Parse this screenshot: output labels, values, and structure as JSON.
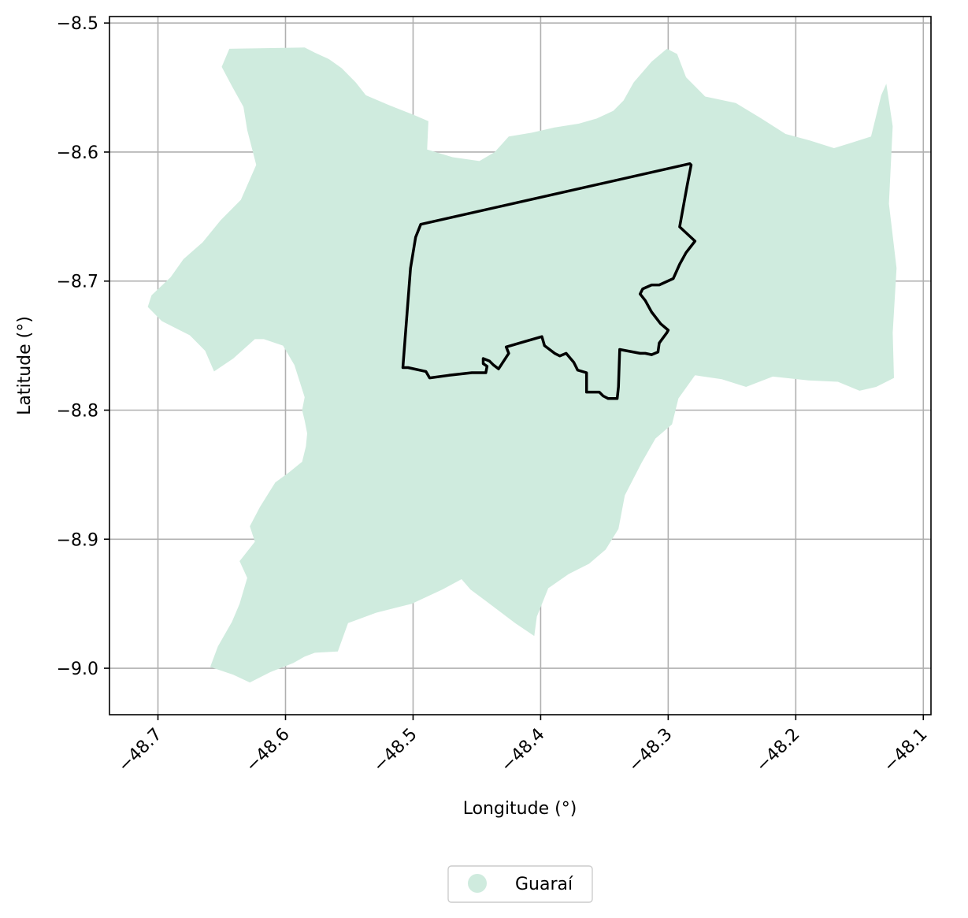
{
  "chart_data": {
    "type": "map",
    "xlabel": "Longitude (°)",
    "ylabel": "Latitude (°)",
    "xlim": [
      -48.738,
      -48.094
    ],
    "ylim": [
      -9.036,
      -8.495
    ],
    "grid": true,
    "x_ticks": [
      -48.7,
      -48.6,
      -48.5,
      -48.4,
      -48.3,
      -48.2,
      -48.1
    ],
    "y_ticks": [
      -8.5,
      -8.6,
      -8.7,
      -8.8,
      -8.9,
      -9.0
    ],
    "x_tick_labels": [
      "−48.7",
      "−48.6",
      "−48.5",
      "−48.4",
      "−48.3",
      "−48.2",
      "−48.1"
    ],
    "y_tick_labels": [
      "−8.5",
      "−8.6",
      "−8.7",
      "−8.8",
      "−8.9",
      "−9.0"
    ],
    "legend_position": "bottom-center",
    "legend": [
      {
        "label": "Guaraí",
        "color": "#cfebde"
      }
    ],
    "region": {
      "name": "Guaraí",
      "fill": "#cfebde",
      "coords": [
        [
          -48.644,
          -8.52
        ],
        [
          -48.585,
          -8.519
        ],
        [
          -48.577,
          -8.523
        ],
        [
          -48.566,
          -8.528
        ],
        [
          -48.556,
          -8.535
        ],
        [
          -48.545,
          -8.546
        ],
        [
          -48.537,
          -8.556
        ],
        [
          -48.518,
          -8.564
        ],
        [
          -48.5,
          -8.571
        ],
        [
          -48.488,
          -8.576
        ],
        [
          -48.489,
          -8.598
        ],
        [
          -48.469,
          -8.604
        ],
        [
          -48.448,
          -8.607
        ],
        [
          -48.436,
          -8.6
        ],
        [
          -48.425,
          -8.588
        ],
        [
          -48.407,
          -8.585
        ],
        [
          -48.389,
          -8.581
        ],
        [
          -48.37,
          -8.578
        ],
        [
          -48.356,
          -8.574
        ],
        [
          -48.343,
          -8.568
        ],
        [
          -48.335,
          -8.56
        ],
        [
          -48.327,
          -8.546
        ],
        [
          -48.313,
          -8.53
        ],
        [
          -48.301,
          -8.52
        ],
        [
          -48.293,
          -8.524
        ],
        [
          -48.286,
          -8.542
        ],
        [
          -48.271,
          -8.557
        ],
        [
          -48.247,
          -8.562
        ],
        [
          -48.227,
          -8.574
        ],
        [
          -48.208,
          -8.586
        ],
        [
          -48.189,
          -8.591
        ],
        [
          -48.17,
          -8.597
        ],
        [
          -48.157,
          -8.593
        ],
        [
          -48.141,
          -8.588
        ],
        [
          -48.133,
          -8.556
        ],
        [
          -48.129,
          -8.547
        ],
        [
          -48.124,
          -8.58
        ],
        [
          -48.127,
          -8.64
        ],
        [
          -48.121,
          -8.69
        ],
        [
          -48.124,
          -8.74
        ],
        [
          -48.123,
          -8.775
        ],
        [
          -48.137,
          -8.782
        ],
        [
          -48.15,
          -8.785
        ],
        [
          -48.167,
          -8.778
        ],
        [
          -48.19,
          -8.777
        ],
        [
          -48.218,
          -8.774
        ],
        [
          -48.239,
          -8.782
        ],
        [
          -48.258,
          -8.776
        ],
        [
          -48.279,
          -8.773
        ],
        [
          -48.292,
          -8.791
        ],
        [
          -48.297,
          -8.811
        ],
        [
          -48.31,
          -8.822
        ],
        [
          -48.321,
          -8.841
        ],
        [
          -48.334,
          -8.866
        ],
        [
          -48.339,
          -8.892
        ],
        [
          -48.349,
          -8.908
        ],
        [
          -48.362,
          -8.919
        ],
        [
          -48.378,
          -8.927
        ],
        [
          -48.394,
          -8.938
        ],
        [
          -48.403,
          -8.96
        ],
        [
          -48.405,
          -8.975
        ],
        [
          -48.42,
          -8.965
        ],
        [
          -48.44,
          -8.95
        ],
        [
          -48.455,
          -8.939
        ],
        [
          -48.462,
          -8.931
        ],
        [
          -48.477,
          -8.939
        ],
        [
          -48.501,
          -8.95
        ],
        [
          -48.529,
          -8.957
        ],
        [
          -48.551,
          -8.965
        ],
        [
          -48.559,
          -8.987
        ],
        [
          -48.577,
          -8.988
        ],
        [
          -48.585,
          -8.991
        ],
        [
          -48.594,
          -8.996
        ],
        [
          -48.612,
          -9.003
        ],
        [
          -48.628,
          -9.011
        ],
        [
          -48.641,
          -9.005
        ],
        [
          -48.659,
          -8.999
        ],
        [
          -48.653,
          -8.983
        ],
        [
          -48.642,
          -8.964
        ],
        [
          -48.636,
          -8.95
        ],
        [
          -48.63,
          -8.93
        ],
        [
          -48.636,
          -8.917
        ],
        [
          -48.624,
          -8.902
        ],
        [
          -48.628,
          -8.89
        ],
        [
          -48.62,
          -8.875
        ],
        [
          -48.608,
          -8.856
        ],
        [
          -48.597,
          -8.848
        ],
        [
          -48.587,
          -8.84
        ],
        [
          -48.584,
          -8.828
        ],
        [
          -48.583,
          -8.818
        ],
        [
          -48.585,
          -8.808
        ],
        [
          -48.587,
          -8.8
        ],
        [
          -48.585,
          -8.79
        ],
        [
          -48.593,
          -8.765
        ],
        [
          -48.602,
          -8.75
        ],
        [
          -48.617,
          -8.745
        ],
        [
          -48.624,
          -8.745
        ],
        [
          -48.641,
          -8.76
        ],
        [
          -48.656,
          -8.77
        ],
        [
          -48.663,
          -8.754
        ],
        [
          -48.675,
          -8.742
        ],
        [
          -48.697,
          -8.731
        ],
        [
          -48.708,
          -8.72
        ],
        [
          -48.705,
          -8.711
        ],
        [
          -48.69,
          -8.697
        ],
        [
          -48.68,
          -8.683
        ],
        [
          -48.665,
          -8.67
        ],
        [
          -48.651,
          -8.653
        ],
        [
          -48.635,
          -8.637
        ],
        [
          -48.623,
          -8.61
        ],
        [
          -48.63,
          -8.583
        ],
        [
          -48.633,
          -8.565
        ],
        [
          -48.642,
          -8.549
        ],
        [
          -48.65,
          -8.534
        ]
      ]
    },
    "boundary": {
      "stroke": "#000000",
      "coords": [
        [
          -48.283,
          -8.609
        ],
        [
          -48.494,
          -8.656
        ],
        [
          -48.498,
          -8.666
        ],
        [
          -48.502,
          -8.69
        ],
        [
          -48.508,
          -8.767
        ],
        [
          -48.504,
          -8.767
        ],
        [
          -48.49,
          -8.77
        ],
        [
          -48.487,
          -8.775
        ],
        [
          -48.472,
          -8.773
        ],
        [
          -48.454,
          -8.771
        ],
        [
          -48.443,
          -8.771
        ],
        [
          -48.442,
          -8.766
        ],
        [
          -48.445,
          -8.764
        ],
        [
          -48.445,
          -8.76
        ],
        [
          -48.44,
          -8.762
        ],
        [
          -48.437,
          -8.765
        ],
        [
          -48.433,
          -8.768
        ],
        [
          -48.425,
          -8.756
        ],
        [
          -48.427,
          -8.751
        ],
        [
          -48.413,
          -8.747
        ],
        [
          -48.399,
          -8.743
        ],
        [
          -48.397,
          -8.75
        ],
        [
          -48.389,
          -8.756
        ],
        [
          -48.385,
          -8.758
        ],
        [
          -48.38,
          -8.756
        ],
        [
          -48.374,
          -8.763
        ],
        [
          -48.371,
          -8.769
        ],
        [
          -48.364,
          -8.771
        ],
        [
          -48.364,
          -8.786
        ],
        [
          -48.359,
          -8.786
        ],
        [
          -48.354,
          -8.786
        ],
        [
          -48.351,
          -8.789
        ],
        [
          -48.347,
          -8.791
        ],
        [
          -48.34,
          -8.791
        ],
        [
          -48.339,
          -8.782
        ],
        [
          -48.338,
          -8.753
        ],
        [
          -48.322,
          -8.756
        ],
        [
          -48.318,
          -8.756
        ],
        [
          -48.313,
          -8.757
        ],
        [
          -48.308,
          -8.755
        ],
        [
          -48.307,
          -8.748
        ],
        [
          -48.301,
          -8.74
        ],
        [
          -48.3,
          -8.738
        ],
        [
          -48.306,
          -8.733
        ],
        [
          -48.313,
          -8.724
        ],
        [
          -48.318,
          -8.715
        ],
        [
          -48.322,
          -8.71
        ],
        [
          -48.32,
          -8.706
        ],
        [
          -48.313,
          -8.703
        ],
        [
          -48.307,
          -8.703
        ],
        [
          -48.296,
          -8.698
        ],
        [
          -48.291,
          -8.687
        ],
        [
          -48.286,
          -8.678
        ],
        [
          -48.279,
          -8.669
        ],
        [
          -48.291,
          -8.658
        ],
        [
          -48.285,
          -8.625
        ],
        [
          -48.282,
          -8.61
        ]
      ]
    }
  }
}
